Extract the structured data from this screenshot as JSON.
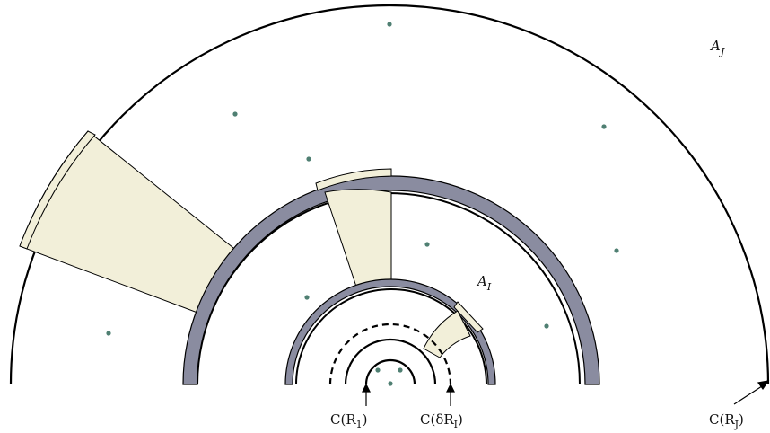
{
  "labels": {
    "region_outer": {
      "main": "A",
      "sub": "J"
    },
    "region_inner": {
      "main": "A",
      "sub": "I"
    },
    "circle_r1": "C(R",
    "circle_r1_sub": "1",
    "circle_r1_close": ")",
    "circle_delta": "C(δR",
    "circle_delta_sub": "I",
    "circle_delta_close": ")",
    "circle_rj": "C(R",
    "circle_rj_sub": "J",
    "circle_rj_close": ")"
  },
  "colors": {
    "band": "#8a8ca0",
    "sector": "#f2efd9",
    "dot": "#4f7f72",
    "stroke": "#000000"
  }
}
